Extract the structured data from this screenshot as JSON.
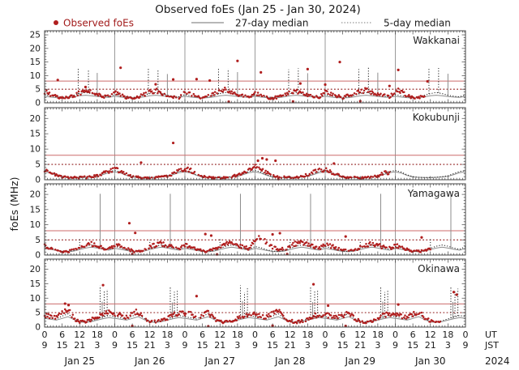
{
  "title": "Observed foEs (Jan 25 - Jan 30, 2024)",
  "legend": {
    "observed_label": "Observed foEs",
    "median27_label": "27-day median",
    "median5_label": "5-day median"
  },
  "axis": {
    "ylabel": "foEs (MHz)",
    "ut_unit": "UT",
    "jst_unit": "JST",
    "year": "2024",
    "ut_tick_labels": [
      "0",
      "6",
      "12",
      "18"
    ],
    "jst_tick_labels": [
      "9",
      "15",
      "21",
      "3"
    ],
    "ut_last": "0",
    "jst_last": "9",
    "dates": [
      "Jan 25",
      "Jan 26",
      "Jan 27",
      "Jan 28",
      "Jan 29",
      "Jan 30"
    ]
  },
  "colors": {
    "observed_dot": "#b01e1e",
    "observed_text": "#a11a1a",
    "median27": "#8c8c8c",
    "median5": "#262626",
    "threshold_solid": "#cc6b6b",
    "threshold_dotted": "#8e1616",
    "grid": "#9a9a9a",
    "frame": "#444444",
    "text": "#1b1b1b"
  },
  "chart_data": {
    "type": "line",
    "title": "Observed foEs (Jan 25 - Jan 30, 2024)",
    "ylabel": "foEs (MHz)",
    "x_hours_ut": [
      0,
      144
    ],
    "x_step_observed_h": 2,
    "grid_day_boundaries_h": [
      24,
      48,
      72,
      96,
      120
    ],
    "thresholds_mhz": {
      "solid_red": 8,
      "dotted_red": 5
    },
    "panels": [
      {
        "station": "Wakkanai",
        "ylim": [
          0,
          26.5
        ],
        "yticks": [
          0,
          5,
          10,
          15,
          20,
          25
        ],
        "observed_2h": [
          4.2,
          3.0,
          2.2,
          1.8,
          2.0,
          2.6,
          3.6,
          4.2,
          3.8,
          3.0,
          2.4,
          2.2,
          3.8,
          2.8,
          2.0,
          1.6,
          2.2,
          3.0,
          4.0,
          4.6,
          3.6,
          2.8,
          2.2,
          2.0,
          4.0,
          3.2,
          2.4,
          2.0,
          2.4,
          3.2,
          4.4,
          5.0,
          4.0,
          3.0,
          2.6,
          2.4,
          3.6,
          2.6,
          2.0,
          1.8,
          2.2,
          2.8,
          3.8,
          4.4,
          3.4,
          2.6,
          2.2,
          2.0,
          4.4,
          3.4,
          2.6,
          2.0,
          2.6,
          3.4,
          4.2,
          4.8,
          3.8,
          3.2,
          2.6,
          2.2,
          4.6,
          4.2,
          2.6,
          1.8,
          2.0,
          2.8,
          null,
          null,
          null,
          null,
          null,
          null,
          null
        ],
        "median27_daily_2h": [
          2.4,
          2.1,
          1.9,
          1.8,
          1.9,
          2.2,
          2.6,
          2.8,
          2.6,
          2.3,
          2.1,
          2.0
        ],
        "median5_daily_2h": [
          3.0,
          2.6,
          2.2,
          2.0,
          2.2,
          2.8,
          3.4,
          3.8,
          3.4,
          2.8,
          2.4,
          2.2
        ],
        "spikes27": [
          [
            18,
            11.0
          ],
          [
            42,
            10.6
          ],
          [
            66,
            11.3
          ],
          [
            90,
            10.9
          ],
          [
            114,
            11.1
          ],
          [
            138,
            10.7
          ]
        ],
        "spikes5": [
          [
            11.5,
            12.9
          ],
          [
            15,
            12.3
          ],
          [
            35.5,
            12.6
          ],
          [
            38.8,
            12.1
          ],
          [
            59.5,
            13.0
          ],
          [
            62.8,
            12.5
          ],
          [
            83.5,
            12.3
          ],
          [
            86.8,
            12.7
          ],
          [
            107.5,
            12.4
          ],
          [
            110.8,
            12.9
          ],
          [
            131.5,
            12.6
          ],
          [
            134.8,
            12.8
          ]
        ],
        "outlier_dots": [
          [
            4.5,
            8.4
          ],
          [
            14,
            5.8
          ],
          [
            26,
            12.9
          ],
          [
            38,
            6.8
          ],
          [
            44,
            8.6
          ],
          [
            52,
            8.7
          ],
          [
            56.5,
            8.2
          ],
          [
            66,
            15.4
          ],
          [
            74,
            11.2
          ],
          [
            87.5,
            7.1
          ],
          [
            90,
            12.4
          ],
          [
            96,
            6.7
          ],
          [
            101,
            15.0
          ],
          [
            118,
            6.2
          ],
          [
            121,
            12.1
          ],
          [
            131,
            7.9
          ],
          [
            63,
            0.4
          ],
          [
            85,
            0.5
          ],
          [
            108,
            0.6
          ]
        ]
      },
      {
        "station": "Kokubunji",
        "ylim": [
          0,
          23.5
        ],
        "yticks": [
          0,
          5,
          10,
          15,
          20
        ],
        "observed_2h": [
          3.0,
          2.4,
          1.4,
          0.9,
          0.8,
          0.7,
          0.7,
          0.8,
          1.0,
          1.4,
          2.2,
          2.8,
          3.4,
          2.8,
          1.8,
          1.0,
          0.8,
          0.7,
          0.7,
          0.8,
          0.9,
          1.2,
          2.0,
          3.0,
          3.6,
          3.0,
          2.0,
          1.1,
          0.8,
          0.7,
          0.7,
          0.8,
          1.0,
          1.5,
          2.4,
          3.2,
          4.2,
          3.6,
          2.6,
          1.4,
          0.9,
          0.8,
          0.7,
          0.9,
          1.1,
          1.6,
          2.6,
          3.4,
          3.2,
          2.6,
          1.6,
          1.0,
          0.8,
          0.7,
          0.7,
          0.8,
          0.9,
          1.2,
          2.2,
          2.4,
          null,
          null,
          null,
          null,
          null,
          null,
          null,
          null,
          null,
          null,
          null,
          null,
          null
        ],
        "median27_daily_2h": [
          2.6,
          2.2,
          1.4,
          0.9,
          0.8,
          0.7,
          0.7,
          0.8,
          0.9,
          1.1,
          1.7,
          2.3
        ],
        "median5_daily_2h": [
          3.0,
          2.5,
          1.6,
          1.0,
          0.8,
          0.7,
          0.7,
          0.8,
          1.0,
          1.3,
          2.0,
          2.7
        ],
        "spikes27": [],
        "spikes5": [],
        "outlier_dots": [
          [
            33,
            5.6
          ],
          [
            44,
            12.0
          ],
          [
            73,
            6.2
          ],
          [
            74.5,
            7.0
          ],
          [
            76,
            6.6
          ],
          [
            79,
            6.2
          ],
          [
            99,
            5.3
          ],
          [
            58,
            0.3
          ],
          [
            80,
            0.2
          ]
        ]
      },
      {
        "station": "Yamagawa",
        "ylim": [
          0,
          23.5
        ],
        "yticks": [
          0,
          5,
          10,
          15,
          20
        ],
        "observed_2h": [
          3.0,
          2.4,
          1.8,
          1.3,
          1.2,
          1.6,
          2.4,
          3.2,
          3.6,
          3.0,
          2.4,
          2.0,
          3.4,
          2.8,
          2.0,
          1.4,
          1.2,
          1.6,
          2.6,
          3.4,
          3.8,
          3.2,
          2.6,
          2.1,
          3.2,
          2.6,
          1.9,
          1.4,
          1.3,
          1.8,
          2.8,
          3.6,
          4.0,
          3.4,
          2.6,
          2.2,
          4.8,
          5.6,
          4.2,
          2.6,
          1.8,
          2.0,
          3.0,
          3.8,
          4.2,
          3.4,
          2.8,
          2.3,
          3.6,
          3.0,
          2.2,
          1.5,
          1.3,
          1.7,
          2.6,
          3.4,
          3.8,
          3.2,
          2.6,
          2.2,
          3.2,
          2.6,
          1.9,
          1.4,
          1.2,
          1.6,
          2.4,
          null,
          null,
          null,
          null,
          null,
          null
        ],
        "median27_daily_2h": [
          2.2,
          1.9,
          1.5,
          1.2,
          1.1,
          1.3,
          1.8,
          2.3,
          2.6,
          2.3,
          1.9,
          1.6
        ],
        "median5_daily_2h": [
          2.8,
          2.4,
          1.8,
          1.3,
          1.2,
          1.5,
          2.2,
          2.9,
          3.3,
          2.9,
          2.3,
          1.9
        ],
        "spikes27": [
          [
            19,
            20.2
          ],
          [
            43,
            20.2
          ],
          [
            67,
            20.2
          ],
          [
            91,
            20.2
          ],
          [
            115,
            20.2
          ],
          [
            139,
            20.2
          ]
        ],
        "spikes5": [
          [
            12,
            5.2
          ],
          [
            36,
            5.0
          ],
          [
            60,
            5.4
          ],
          [
            84,
            5.2
          ],
          [
            108,
            5.0
          ],
          [
            132,
            5.3
          ]
        ],
        "outlier_dots": [
          [
            29,
            10.5
          ],
          [
            31,
            7.3
          ],
          [
            55,
            6.9
          ],
          [
            57,
            6.4
          ],
          [
            78,
            6.8
          ],
          [
            80.5,
            7.2
          ],
          [
            103,
            6.1
          ],
          [
            129,
            5.8
          ],
          [
            30,
            0.3
          ],
          [
            59,
            0.2
          ],
          [
            83,
            0.3
          ]
        ]
      },
      {
        "station": "Okinawa",
        "ylim": [
          0,
          23.5
        ],
        "yticks": [
          0,
          5,
          10,
          15,
          20
        ],
        "observed_2h": [
          4.2,
          3.6,
          3.2,
          5.0,
          6.5,
          3.0,
          1.8,
          2.0,
          2.6,
          3.4,
          4.4,
          5.0,
          4.6,
          4.0,
          3.4,
          4.4,
          5.4,
          3.2,
          2.0,
          1.8,
          2.4,
          3.2,
          4.2,
          4.8,
          5.0,
          4.4,
          3.6,
          4.2,
          5.0,
          3.0,
          1.9,
          1.7,
          2.2,
          3.0,
          4.0,
          4.6,
          4.4,
          3.8,
          3.4,
          4.6,
          5.6,
          3.4,
          2.2,
          1.8,
          2.0,
          2.8,
          3.8,
          4.4,
          4.2,
          3.8,
          3.2,
          4.0,
          5.0,
          3.0,
          2.0,
          1.6,
          2.2,
          3.0,
          4.0,
          4.6,
          4.4,
          3.8,
          3.2,
          4.2,
          5.2,
          3.2,
          2.0,
          1.8,
          2.2,
          null,
          null,
          null,
          null
        ],
        "median27_daily_2h": [
          3.0,
          2.7,
          2.4,
          3.0,
          3.6,
          2.6,
          1.8,
          1.6,
          1.9,
          2.4,
          2.9,
          3.3
        ],
        "median5_daily_2h": [
          3.6,
          3.2,
          2.8,
          3.8,
          4.6,
          3.0,
          2.0,
          1.8,
          2.2,
          2.8,
          3.5,
          4.0
        ],
        "spikes27": [
          [
            19.7,
            8.8
          ],
          [
            43.7,
            8.5
          ],
          [
            67.7,
            9.0
          ],
          [
            91.7,
            8.6
          ],
          [
            115.7,
            8.8
          ],
          [
            139.7,
            8.7
          ]
        ],
        "spikes5": [
          [
            19,
            14.3
          ],
          [
            20.4,
            12.5
          ],
          [
            21.4,
            13.1
          ],
          [
            43,
            14.0
          ],
          [
            44.4,
            12.2
          ],
          [
            45.4,
            12.8
          ],
          [
            67,
            14.4
          ],
          [
            68.4,
            12.0
          ],
          [
            69.4,
            13.4
          ],
          [
            91,
            13.8
          ],
          [
            92.4,
            12.4
          ],
          [
            93.4,
            12.9
          ],
          [
            115,
            14.2
          ],
          [
            116.4,
            12.1
          ],
          [
            117.4,
            12.6
          ],
          [
            139,
            14.0
          ],
          [
            140.4,
            12.8
          ],
          [
            141.4,
            13.3
          ]
        ],
        "outlier_dots": [
          [
            7,
            8.1
          ],
          [
            8.2,
            7.6
          ],
          [
            20,
            14.5
          ],
          [
            52,
            10.7
          ],
          [
            92,
            14.8
          ],
          [
            97,
            7.4
          ],
          [
            121,
            7.8
          ],
          [
            140,
            12.1
          ],
          [
            141,
            11.2
          ],
          [
            30,
            0.4
          ],
          [
            56,
            0.3
          ],
          [
            78,
            0.5
          ],
          [
            103,
            0.4
          ]
        ]
      }
    ]
  }
}
